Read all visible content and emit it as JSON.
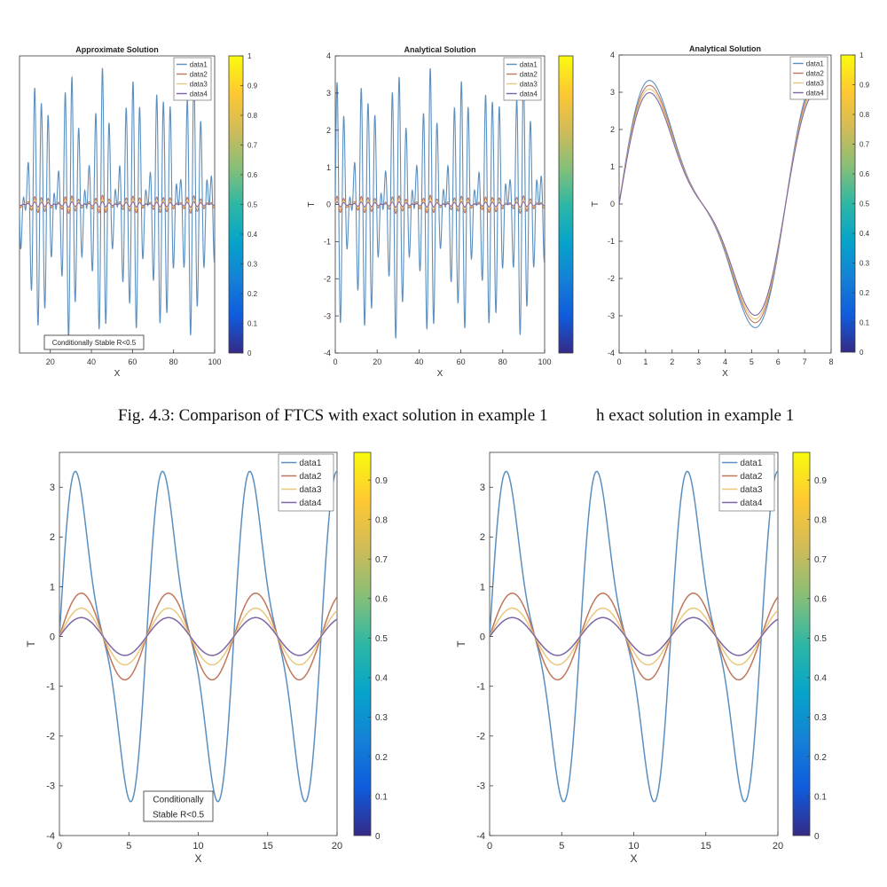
{
  "captions": {
    "left": "Fig. 4.3: Comparison of FTCS with exact solution in example 1",
    "right": "h exact solution in example 1"
  },
  "series_colors": {
    "data1": "#5b8fbf",
    "data2": "#c0765a",
    "data3": "#e8c87c",
    "data4": "#7e66a6"
  },
  "colorbar": {
    "stops": [
      "#352a87",
      "#0f5cdd",
      "#1481d6",
      "#06a4ca",
      "#2eb7a4",
      "#87bf77",
      "#d1bb59",
      "#fec832",
      "#f9fb0e"
    ],
    "range": [
      0,
      1
    ]
  },
  "chart_data": [
    {
      "type": "line",
      "title": "Approximate Solution",
      "xlabel": "X",
      "ylabel": "",
      "xlim": [
        5,
        100
      ],
      "ylim": [
        -4,
        4
      ],
      "xticks": [
        "20",
        "40",
        "60",
        "80",
        "100"
      ],
      "yticks": [],
      "colorbar_ticks": [
        "0",
        "0.1",
        "0.2",
        "0.3",
        "0.4",
        "0.5",
        "0.6",
        "0.7",
        "0.8",
        "0.9",
        "1"
      ],
      "legend": {
        "position": "top-right",
        "entries": [
          "data1",
          "data2",
          "data3",
          "data4"
        ]
      },
      "annotation": [
        "Conditionally Stable R<0.5"
      ],
      "series": [
        {
          "name": "data1",
          "shape": "oscillating",
          "amplitude": 3.7,
          "period": 3.3
        },
        {
          "name": "data2",
          "shape": "oscillating",
          "amplitude": 0.25,
          "period": 3.3
        },
        {
          "name": "data3",
          "shape": "oscillating",
          "amplitude": 0.15,
          "period": 3.3
        },
        {
          "name": "data4",
          "shape": "oscillating",
          "amplitude": 0.08,
          "period": 3.3
        }
      ]
    },
    {
      "type": "line",
      "title": "Analytical Solution",
      "xlabel": "X",
      "ylabel": "T",
      "xlim": [
        0,
        100
      ],
      "ylim": [
        -4,
        4
      ],
      "xticks": [
        "0",
        "20",
        "40",
        "60",
        "80",
        "100"
      ],
      "yticks": [
        "-4",
        "-3",
        "-2",
        "-1",
        "0",
        "1",
        "2",
        "3",
        "4"
      ],
      "colorbar_ticks": [],
      "legend": {
        "position": "top-right",
        "entries": [
          "data1",
          "data2",
          "data3",
          "data4"
        ]
      },
      "annotation": [],
      "series": [
        {
          "name": "data1",
          "shape": "oscillating",
          "amplitude": 3.7,
          "period": 3.3
        },
        {
          "name": "data2",
          "shape": "oscillating",
          "amplitude": 0.25,
          "period": 3.3
        },
        {
          "name": "data3",
          "shape": "oscillating",
          "amplitude": 0.15,
          "period": 3.3
        },
        {
          "name": "data4",
          "shape": "oscillating",
          "amplitude": 0.08,
          "period": 3.3
        }
      ]
    },
    {
      "type": "line",
      "title": "Analytical Solution",
      "xlabel": "X",
      "ylabel": "T",
      "xlim": [
        0,
        8
      ],
      "ylim": [
        -4,
        4
      ],
      "xticks": [
        "0",
        "1",
        "2",
        "3",
        "4",
        "5",
        "6",
        "7",
        "8"
      ],
      "yticks": [
        "-4",
        "-3",
        "-2",
        "-1",
        "0",
        "1",
        "2",
        "3",
        "4"
      ],
      "colorbar_ticks": [
        "0",
        "0.1",
        "0.2",
        "0.3",
        "0.4",
        "0.5",
        "0.6",
        "0.7",
        "0.8",
        "0.9",
        "1"
      ],
      "legend": {
        "position": "top-right",
        "entries": [
          "data1",
          "data2",
          "data3",
          "data4"
        ]
      },
      "annotation": [],
      "x_end": 7.5,
      "series": [
        {
          "name": "data1",
          "shape": "two-sine",
          "scale": 1.0
        },
        {
          "name": "data2",
          "shape": "two-sine",
          "scale": 0.96
        },
        {
          "name": "data3",
          "shape": "two-sine",
          "scale": 0.93
        },
        {
          "name": "data4",
          "shape": "two-sine",
          "scale": 0.9
        }
      ]
    },
    {
      "type": "line",
      "title": "",
      "xlabel": "X",
      "ylabel": "T",
      "xlim": [
        0,
        20
      ],
      "ylim": [
        -4,
        3.7
      ],
      "xticks": [
        "0",
        "5",
        "10",
        "15",
        "20"
      ],
      "yticks": [
        "-4",
        "-3",
        "-2",
        "-1",
        "0",
        "1",
        "2",
        "3"
      ],
      "colorbar_ticks": [
        "0",
        "0.1",
        "0.2",
        "0.3",
        "0.4",
        "0.5",
        "0.6",
        "0.7",
        "0.8",
        "0.9"
      ],
      "colorbar_max": 0.97,
      "legend": {
        "position": "top-right",
        "entries": [
          "data1",
          "data2",
          "data3",
          "data4"
        ]
      },
      "annotation": [
        "Conditionally",
        "Stable R<0.5"
      ],
      "series": [
        {
          "name": "data1",
          "shape": "two-sine",
          "scale": 1.0
        },
        {
          "name": "data2",
          "shape": "sine",
          "amplitude": 0.87
        },
        {
          "name": "data3",
          "shape": "sine",
          "amplitude": 0.57
        },
        {
          "name": "data4",
          "shape": "sine",
          "amplitude": 0.38
        }
      ]
    },
    {
      "type": "line",
      "title": "",
      "xlabel": "X",
      "ylabel": "T",
      "xlim": [
        0,
        20
      ],
      "ylim": [
        -4,
        3.7
      ],
      "xticks": [
        "0",
        "5",
        "10",
        "15",
        "20"
      ],
      "yticks": [
        "-4",
        "-3",
        "-2",
        "-1",
        "0",
        "1",
        "2",
        "3"
      ],
      "colorbar_ticks": [
        "0",
        "0.1",
        "0.2",
        "0.3",
        "0.4",
        "0.5",
        "0.6",
        "0.7",
        "0.8",
        "0.9"
      ],
      "colorbar_max": 0.97,
      "legend": {
        "position": "top-right",
        "entries": [
          "data1",
          "data2",
          "data3",
          "data4"
        ]
      },
      "annotation": [],
      "series": [
        {
          "name": "data1",
          "shape": "two-sine",
          "scale": 1.0
        },
        {
          "name": "data2",
          "shape": "sine",
          "amplitude": 0.87
        },
        {
          "name": "data3",
          "shape": "sine",
          "amplitude": 0.57
        },
        {
          "name": "data4",
          "shape": "sine",
          "amplitude": 0.38
        }
      ]
    }
  ]
}
